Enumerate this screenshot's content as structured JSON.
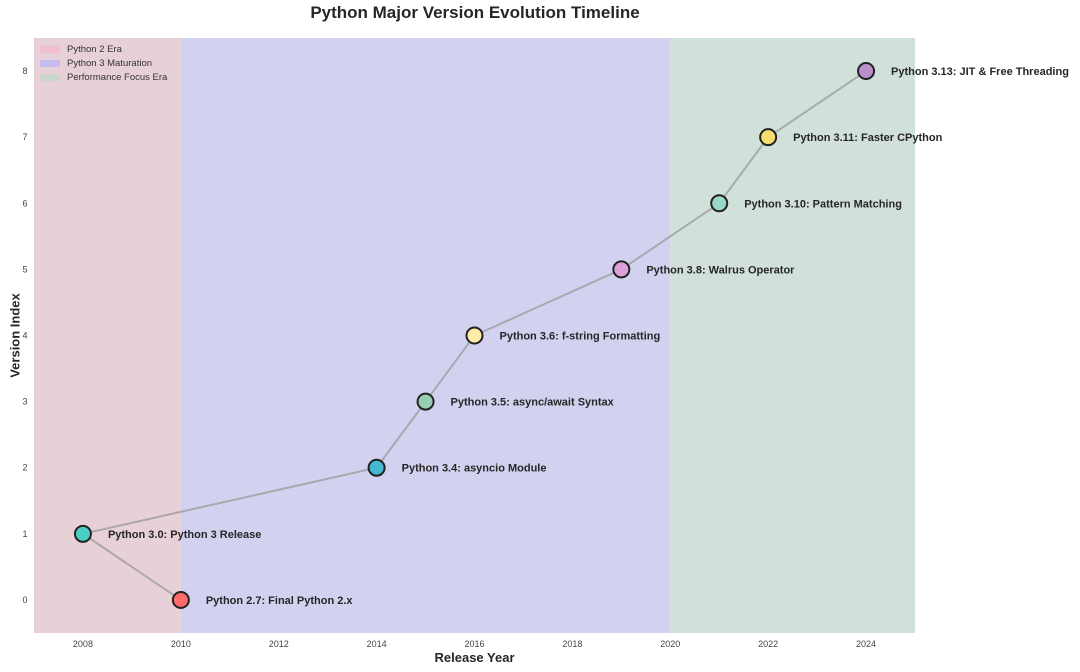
{
  "chart_data": {
    "type": "line",
    "title": "Python Major Version Evolution Timeline",
    "xlabel": "Release Year",
    "ylabel": "Version Index",
    "xlim": [
      2007,
      2025
    ],
    "ylim": [
      -0.5,
      8.5
    ],
    "xticks": [
      2008,
      2010,
      2012,
      2014,
      2016,
      2018,
      2020,
      2022,
      2024
    ],
    "yticks": [
      0,
      1,
      2,
      3,
      4,
      5,
      6,
      7,
      8
    ],
    "grid": false,
    "legend_position": "upper left",
    "eras": [
      {
        "name": "Python 2 Era",
        "start": 2007,
        "end": 2010,
        "color": "#e8d0d8"
      },
      {
        "name": "Python 3 Maturation",
        "start": 2010,
        "end": 2020,
        "color": "#d2d2f0"
      },
      {
        "name": "Performance Focus Era",
        "start": 2020,
        "end": 2025,
        "color": "#d2e0da"
      }
    ],
    "points": [
      {
        "year": 2008,
        "index": 1,
        "label": "Python 3.0: Python 3 Release",
        "color": "#4ecdc4"
      },
      {
        "year": 2010,
        "index": 0,
        "label": "Python 2.7: Final Python 2.x",
        "color": "#ff6b6b"
      },
      {
        "year": 2014,
        "index": 2,
        "label": "Python 3.4: asyncio Module",
        "color": "#45b7d1"
      },
      {
        "year": 2015,
        "index": 3,
        "label": "Python 3.5: async/await Syntax",
        "color": "#96ceb4"
      },
      {
        "year": 2016,
        "index": 4,
        "label": "Python 3.6: f-string Formatting",
        "color": "#ffeaa7"
      },
      {
        "year": 2019,
        "index": 5,
        "label": "Python 3.8: Walrus Operator",
        "color": "#dda0dd"
      },
      {
        "year": 2021,
        "index": 6,
        "label": "Python 3.10: Pattern Matching",
        "color": "#98d8c8"
      },
      {
        "year": 2022,
        "index": 7,
        "label": "Python 3.11: Faster CPython",
        "color": "#f7dc6f"
      },
      {
        "year": 2024,
        "index": 8,
        "label": "Python 3.13: JIT & Free Threading",
        "color": "#bb8fce"
      }
    ],
    "line_order": [
      {
        "year": 2010,
        "index": 0
      },
      {
        "year": 2008,
        "index": 1
      },
      {
        "year": 2014,
        "index": 2
      },
      {
        "year": 2015,
        "index": 3
      },
      {
        "year": 2016,
        "index": 4
      },
      {
        "year": 2019,
        "index": 5
      },
      {
        "year": 2021,
        "index": 6
      },
      {
        "year": 2022,
        "index": 7
      },
      {
        "year": 2024,
        "index": 8
      }
    ],
    "line_color": "#999999"
  }
}
